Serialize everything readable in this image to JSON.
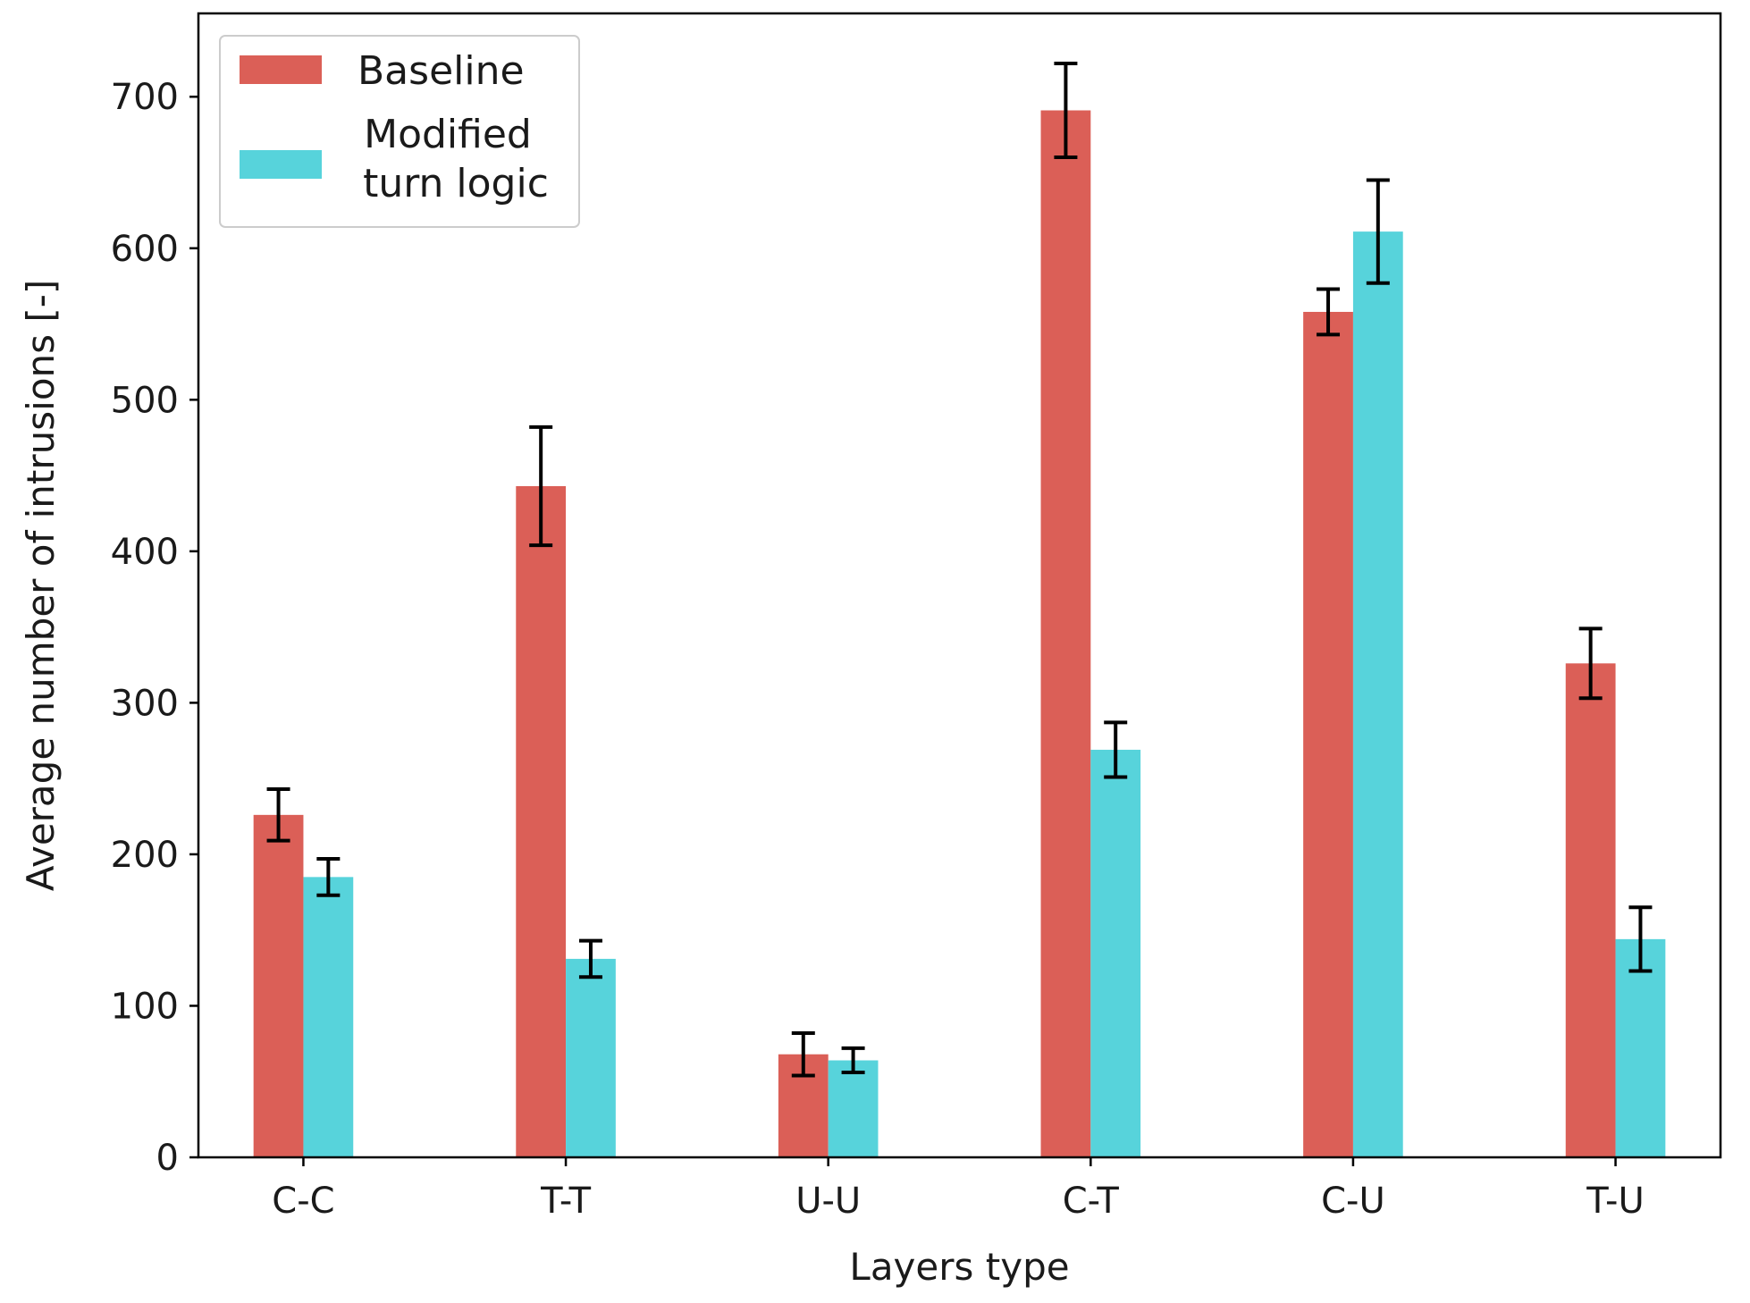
{
  "chart_data": {
    "type": "bar",
    "title": "",
    "xlabel": "Layers type",
    "ylabel": "Average number of intrusions [-]",
    "categories": [
      "C-C",
      "T-T",
      "U-U",
      "C-T",
      "C-U",
      "T-U"
    ],
    "ylim": [
      0,
      755
    ],
    "yticks": [
      0,
      100,
      200,
      300,
      400,
      500,
      600,
      700
    ],
    "grid": false,
    "legend_position": "top-left",
    "series": [
      {
        "name": "Baseline",
        "color": "#db5f57",
        "values": [
          226,
          443,
          68,
          691,
          558,
          326
        ],
        "errors": [
          17,
          39,
          14,
          31,
          15,
          23
        ]
      },
      {
        "name": "Modified turn logic",
        "legend_lines": [
          "Modified",
          "turn logic"
        ],
        "color": "#57d3db",
        "values": [
          185,
          131,
          64,
          269,
          611,
          144
        ],
        "errors": [
          12,
          12,
          8,
          18,
          34,
          21
        ]
      }
    ]
  }
}
